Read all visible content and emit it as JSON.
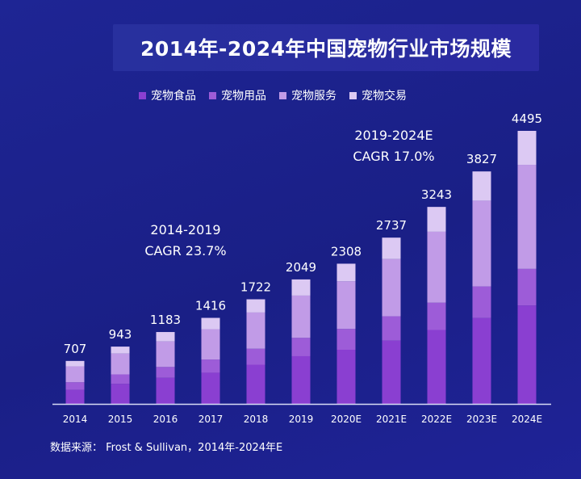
{
  "chart_data": {
    "type": "bar",
    "stacked": true,
    "title": "2014年-2024年中国宠物行业市场规模",
    "categories": [
      "2014",
      "2015",
      "2016",
      "2017",
      "2018",
      "2019",
      "2020E",
      "2021E",
      "2022E",
      "2023E",
      "2024E"
    ],
    "totals": [
      707,
      943,
      1183,
      1416,
      1722,
      2049,
      2308,
      2737,
      3243,
      3827,
      4495
    ],
    "series": [
      {
        "name": "宠物食品",
        "color": "#8a3fd1",
        "values": [
          231,
          329,
          429,
          513,
          645,
          785,
          891,
          1041,
          1217,
          1413,
          1620
        ]
      },
      {
        "name": "宠物用品",
        "color": "#9d5cd8",
        "values": [
          125,
          156,
          179,
          217,
          263,
          302,
          343,
          401,
          449,
          520,
          603
        ]
      },
      {
        "name": "宠物服务",
        "color": "#c19be7",
        "values": [
          262,
          343,
          420,
          500,
          596,
          696,
          784,
          943,
          1168,
          1413,
          1713
        ]
      },
      {
        "name": "宠物交易",
        "color": "#dcc9f3",
        "values": [
          89,
          115,
          155,
          186,
          218,
          266,
          290,
          352,
          409,
          481,
          559
        ]
      }
    ],
    "legend_position": "top",
    "grid": false,
    "ylim": [
      0,
      4495
    ],
    "annotations": [
      {
        "period": "2014-2019",
        "cagr": "CAGR 23.7%"
      },
      {
        "period": "2019-2024E",
        "cagr": "CAGR 17.0%"
      }
    ],
    "source": "数据来源：  Frost & Sullivan，2014年-2024年E"
  }
}
